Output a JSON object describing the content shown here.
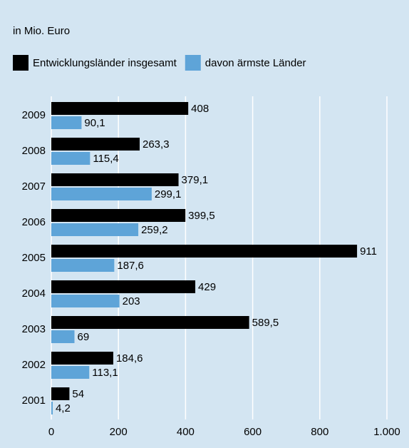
{
  "chart_data": {
    "type": "bar",
    "orientation": "horizontal",
    "title": "in Mio. Euro",
    "categories": [
      "2009",
      "2008",
      "2007",
      "2006",
      "2005",
      "2004",
      "2003",
      "2002",
      "2001"
    ],
    "series": [
      {
        "name": "Entwicklungsländer insgesamt",
        "color": "#000000",
        "values": [
          408,
          263.3,
          379.1,
          399.5,
          911,
          429,
          589.5,
          184.6,
          54
        ],
        "value_labels": [
          "408",
          "263,3",
          "379,1",
          "399,5",
          "911",
          "429",
          "589,5",
          "184,6",
          "54"
        ]
      },
      {
        "name": "davon ärmste Länder",
        "color": "#5ea4d8",
        "values": [
          90.1,
          115.4,
          299.1,
          259.2,
          187.6,
          203,
          69,
          113.1,
          4.2
        ],
        "value_labels": [
          "90,1",
          "115,4",
          "299,1",
          "259,2",
          "187,6",
          "203",
          "69",
          "113,1",
          "4,2"
        ]
      }
    ],
    "xlim": [
      0,
      1000
    ],
    "xticks": [
      0,
      200,
      400,
      600,
      800,
      {
        "value": 1000,
        "label": "1.000"
      }
    ],
    "grid": true,
    "legend": "top"
  }
}
